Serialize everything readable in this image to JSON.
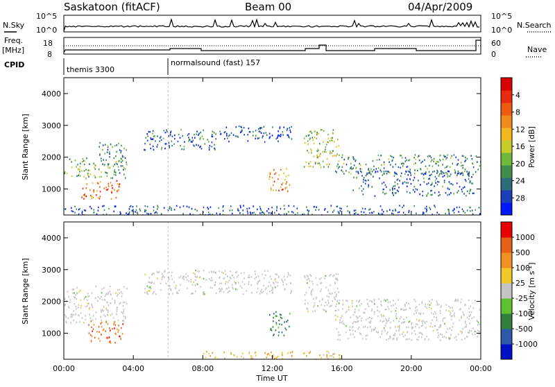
{
  "header": {
    "station": "Saskatoon (fitACF)",
    "beam": "Beam 00",
    "date": "04/Apr/2009"
  },
  "aux": {
    "nsky_label": "N.Sky",
    "nsearch_label": "N.Search",
    "nsky_ticks": [
      "10^5",
      "10^0"
    ],
    "nsearch_ticks": [
      "10^5",
      "10^0"
    ],
    "freq_label": "Freq.",
    "freq_unit": "[MHz]",
    "freq_ticks": [
      "18",
      "8"
    ],
    "nave_label": "Nave",
    "nave_ticks": [
      "60",
      "0"
    ],
    "cpid_label": "CPID",
    "cpid_entries": [
      {
        "text": "themis 3300",
        "start_hour": 0
      },
      {
        "text": "normalsound (fast) 157",
        "start_hour": 6
      }
    ]
  },
  "chart_data": [
    {
      "type": "heatmap",
      "title": "",
      "ylabel": "Slant Range [km]",
      "xlabel": "Time UT",
      "xlim": [
        0,
        24
      ],
      "ylim": [
        180,
        4500
      ],
      "y_ticks": [
        1000,
        2000,
        3000,
        4000
      ],
      "x_ticks": [
        "00:00",
        "04:00",
        "08:00",
        "12:00",
        "16:00",
        "20:00",
        "00:00"
      ],
      "colorbar": {
        "label": "Power [dB]",
        "ticks": [
          "4",
          "8",
          "12",
          "16",
          "20",
          "24",
          "28"
        ],
        "colors": [
          "#0018ff",
          "#1a3fb8",
          "#2a6e7a",
          "#3f8f4a",
          "#6fb83a",
          "#c8cc2a",
          "#f2b820",
          "#f08a18",
          "#ee5a12",
          "#e82a10",
          "#d80000"
        ]
      },
      "regions": [
        {
          "hours": [
            0.0,
            3.6
          ],
          "range": [
            1350,
            2000
          ],
          "level": 0.35
        },
        {
          "hours": [
            1.0,
            3.2
          ],
          "range": [
            700,
            1300
          ],
          "level": 0.75
        },
        {
          "hours": [
            2.0,
            3.6
          ],
          "range": [
            1900,
            2500
          ],
          "level": 0.3
        },
        {
          "hours": [
            4.6,
            9.0
          ],
          "range": [
            2250,
            2900
          ],
          "level": 0.2
        },
        {
          "hours": [
            9.0,
            13.2
          ],
          "range": [
            2500,
            3000
          ],
          "level": 0.15
        },
        {
          "hours": [
            11.8,
            13.0
          ],
          "range": [
            950,
            1700
          ],
          "level": 0.7
        },
        {
          "hours": [
            13.8,
            15.8
          ],
          "range": [
            1700,
            2900
          ],
          "level": 0.45
        },
        {
          "hours": [
            15.6,
            24.0
          ],
          "range": [
            1500,
            2100
          ],
          "level": 0.3
        },
        {
          "hours": [
            16.6,
            23.6
          ],
          "range": [
            800,
            1600
          ],
          "level": 0.2
        },
        {
          "hours": [
            0.0,
            24.0
          ],
          "range": [
            180,
            500
          ],
          "level": 0.15
        }
      ]
    },
    {
      "type": "heatmap",
      "title": "",
      "ylabel": "Slant Range [km]",
      "xlabel": "Time UT",
      "xlim": [
        0,
        24
      ],
      "ylim": [
        180,
        4500
      ],
      "y_ticks": [
        1000,
        2000,
        3000,
        4000
      ],
      "x_ticks": [
        "00:00",
        "04:00",
        "08:00",
        "12:00",
        "16:00",
        "20:00",
        "00:00"
      ],
      "colorbar": {
        "label": "Velocity [m s^-1]",
        "ticks": [
          "1000",
          "500",
          "100",
          "25",
          "-25",
          "-100",
          "-500",
          "-1000"
        ],
        "colors": [
          "#0010c8",
          "#2a5aa8",
          "#2f7f3f",
          "#5fc030",
          "#c4c4c4",
          "#f0c828",
          "#f09020",
          "#e86018",
          "#e80000"
        ]
      },
      "regions": [
        {
          "hours": [
            0.0,
            3.6
          ],
          "range": [
            1350,
            2500
          ],
          "level": 0.0
        },
        {
          "hours": [
            1.4,
            3.4
          ],
          "range": [
            700,
            1400
          ],
          "level": -0.6
        },
        {
          "hours": [
            4.6,
            13.2
          ],
          "range": [
            2250,
            3000
          ],
          "level": 0.0
        },
        {
          "hours": [
            11.8,
            13.0
          ],
          "range": [
            950,
            1700
          ],
          "level": 0.5
        },
        {
          "hours": [
            13.8,
            15.8
          ],
          "range": [
            1700,
            2900
          ],
          "level": 0.0
        },
        {
          "hours": [
            15.6,
            24.0
          ],
          "range": [
            800,
            2100
          ],
          "level": 0.0
        },
        {
          "hours": [
            8.0,
            16.0
          ],
          "range": [
            180,
            450
          ],
          "level": -0.3
        }
      ]
    }
  ]
}
